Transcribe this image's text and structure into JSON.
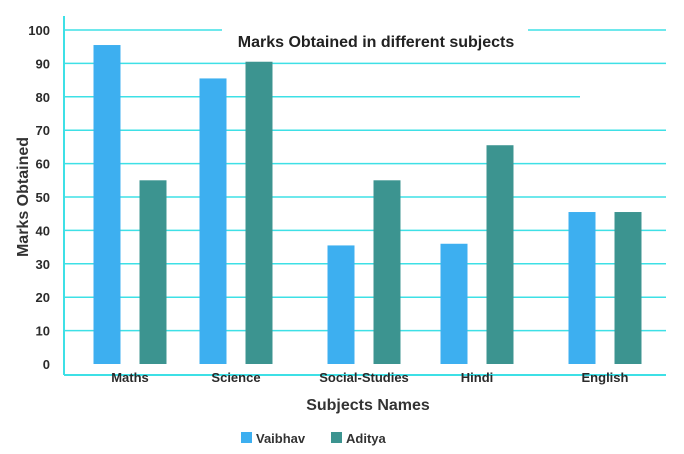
{
  "chart_data": {
    "type": "bar",
    "title": "Marks Obtained in different subjects",
    "xlabel": "Subjects Names",
    "ylabel": "Marks Obtained",
    "categories": [
      "Maths",
      "Science",
      "Social-Studies",
      "Hindi",
      "English"
    ],
    "series": [
      {
        "name": "Vaibhav",
        "values": [
          95.5,
          85.5,
          35.5,
          36,
          45.5
        ],
        "color": "#3daff0"
      },
      {
        "name": "Aditya",
        "values": [
          55,
          90.5,
          55,
          65.5,
          45.5
        ],
        "color": "#3c9490"
      }
    ],
    "ylim": [
      0,
      100
    ],
    "yticks": [
      0,
      10,
      20,
      30,
      40,
      50,
      60,
      70,
      80,
      90,
      100
    ],
    "grid": true,
    "grid_color": "#3ee0e6",
    "legend_position": "bottom"
  }
}
